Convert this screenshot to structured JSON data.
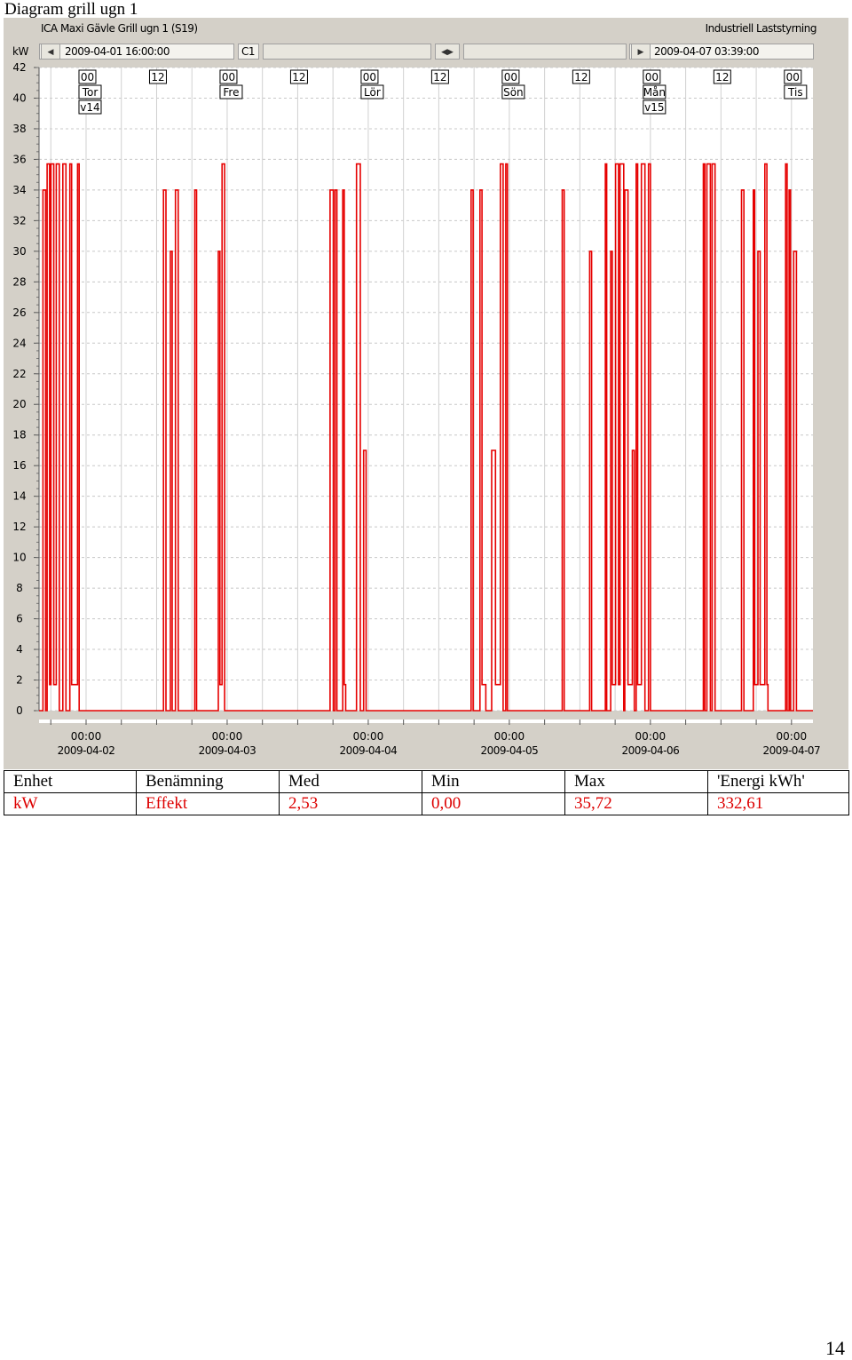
{
  "document": {
    "title": "Diagram grill ugn 1",
    "page_number": "14"
  },
  "app": {
    "chart_title": "ICA Maxi Gävle Grill ugn 1 (S19)",
    "brand": "Industriell Laststyrning",
    "unit_label": "kW",
    "start_time": "2009-04-01 16:00:00",
    "cursor_label": "C1",
    "end_time": "2009-04-07 03:39:00"
  },
  "top_markers": [
    {
      "hour": "00",
      "day": "Tor",
      "week": "v14"
    },
    {
      "hour": "12"
    },
    {
      "hour": "00",
      "day": "Fre"
    },
    {
      "hour": "12"
    },
    {
      "hour": "00",
      "day": "Lör"
    },
    {
      "hour": "12"
    },
    {
      "hour": "00",
      "day": "Sön"
    },
    {
      "hour": "12"
    },
    {
      "hour": "00",
      "day": "Mån",
      "week": "v15"
    },
    {
      "hour": "12"
    },
    {
      "hour": "00",
      "day": "Tis"
    }
  ],
  "colors": {
    "series": "#e60000",
    "grid": "#c8c8c8",
    "panel": "#d4d0c8"
  },
  "chart_data": {
    "type": "line",
    "ylabel": "kW",
    "ylim": [
      0,
      42
    ],
    "yticks": [
      0,
      2,
      4,
      6,
      8,
      10,
      12,
      14,
      16,
      18,
      20,
      22,
      24,
      26,
      28,
      30,
      32,
      34,
      36,
      38,
      40,
      42
    ],
    "xlim": [
      "2009-04-01 16:00:00",
      "2009-04-07 03:39:00"
    ],
    "xticks": [
      {
        "time": "00:00",
        "date": "2009-04-02"
      },
      {
        "time": "00:00",
        "date": "2009-04-03"
      },
      {
        "time": "00:00",
        "date": "2009-04-04"
      },
      {
        "time": "00:00",
        "date": "2009-04-05"
      },
      {
        "time": "00:00",
        "date": "2009-04-06"
      },
      {
        "time": "00:00",
        "date": "2009-04-07"
      }
    ],
    "grid": true,
    "series": [
      {
        "name": "Effekt",
        "color": "#e60000",
        "bursts": [
          {
            "start": "2009-04-01 16:40",
            "end": "2009-04-01 23:00",
            "peak": 35.7
          },
          {
            "start": "2009-04-02 13:10",
            "end": "2009-04-02 15:40",
            "peak": 34
          },
          {
            "start": "2009-04-02 18:30",
            "end": "2009-04-02 19:00",
            "peak": 34
          },
          {
            "start": "2009-04-02 22:30",
            "end": "2009-04-03 00:00",
            "peak": 35.7
          },
          {
            "start": "2009-04-03 17:30",
            "end": "2009-04-03 18:40",
            "peak": 34
          },
          {
            "start": "2009-04-03 19:40",
            "end": "2009-04-03 20:10",
            "peak": 34
          },
          {
            "start": "2009-04-03 22:00",
            "end": "2009-04-04 00:00",
            "peak": 35.7
          },
          {
            "start": "2009-04-04 17:30",
            "end": "2009-04-04 18:20",
            "peak": 34
          },
          {
            "start": "2009-04-04 19:00",
            "end": "2009-04-04 20:00",
            "peak": 34
          },
          {
            "start": "2009-04-04 21:00",
            "end": "2009-04-04 23:40",
            "peak": 35.7
          },
          {
            "start": "2009-04-05 09:00",
            "end": "2009-04-05 09:20",
            "peak": 34
          },
          {
            "start": "2009-04-05 13:40",
            "end": "2009-04-05 14:00",
            "peak": 34
          },
          {
            "start": "2009-04-05 16:20",
            "end": "2009-04-06 00:00",
            "peak": 35.7
          },
          {
            "start": "2009-04-06 09:00",
            "end": "2009-04-06 11:00",
            "peak": 35.7
          },
          {
            "start": "2009-04-06 15:30",
            "end": "2009-04-06 16:00",
            "peak": 34
          },
          {
            "start": "2009-04-06 17:30",
            "end": "2009-04-06 20:00",
            "peak": 35.7
          },
          {
            "start": "2009-04-06 23:00",
            "end": "2009-04-07 01:00",
            "peak": 35.7
          }
        ]
      }
    ]
  },
  "stats_table": {
    "headers": [
      "Enhet",
      "Benämning",
      "Med",
      "Min",
      "Max",
      "'Energi kWh'"
    ],
    "rows": [
      [
        "kW",
        "Effekt",
        "2,53",
        "0,00",
        "35,72",
        "332,61"
      ]
    ]
  }
}
